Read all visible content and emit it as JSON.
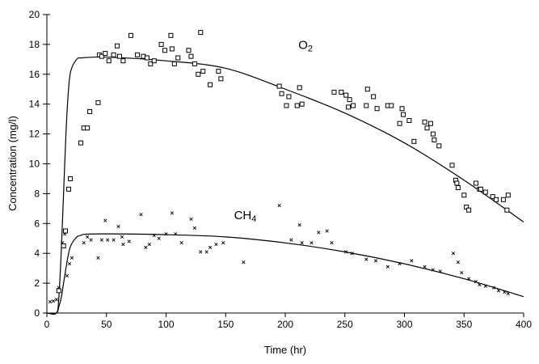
{
  "chart_data": {
    "type": "scatter",
    "title": "",
    "xlabel": "Time (hr)",
    "ylabel": "Concentration (mg/l)",
    "xlim": [
      0,
      400
    ],
    "ylim": [
      0,
      20
    ],
    "xticks": [
      0,
      50,
      100,
      150,
      200,
      250,
      300,
      350,
      400
    ],
    "yticks": [
      0,
      2,
      4,
      6,
      8,
      10,
      12,
      14,
      16,
      18,
      20
    ],
    "grid": false,
    "annotations": [
      {
        "text": "O",
        "sub": "2",
        "x": 211,
        "y": 17.7
      },
      {
        "text": "CH",
        "sub": "4",
        "x": 157,
        "y": 6.3
      }
    ],
    "series": [
      {
        "name": "O2",
        "marker": "square",
        "points": [
          [
            10,
            1.5
          ],
          [
            14,
            4.5
          ],
          [
            15.6,
            5.5
          ],
          [
            18.3,
            8.3
          ],
          [
            19.7,
            9.0
          ],
          [
            28.5,
            11.4
          ],
          [
            31,
            12.4
          ],
          [
            34,
            12.4
          ],
          [
            36,
            13.5
          ],
          [
            43,
            14.1
          ],
          [
            44,
            17.3
          ],
          [
            46,
            17.2
          ],
          [
            49,
            17.4
          ],
          [
            52,
            16.9
          ],
          [
            56,
            17.3
          ],
          [
            59,
            17.9
          ],
          [
            61,
            17.2
          ],
          [
            64,
            16.9
          ],
          [
            70.5,
            18.6
          ],
          [
            76,
            17.3
          ],
          [
            81,
            17.2
          ],
          [
            84,
            17.1
          ],
          [
            87,
            16.7
          ],
          [
            90,
            16.9
          ],
          [
            96,
            18.0
          ],
          [
            99,
            17.6
          ],
          [
            104,
            18.6
          ],
          [
            105,
            17.7
          ],
          [
            107,
            16.7
          ],
          [
            110,
            17.1
          ],
          [
            119,
            17.6
          ],
          [
            121,
            17.2
          ],
          [
            124,
            16.7
          ],
          [
            129,
            18.8
          ],
          [
            127,
            16.0
          ],
          [
            131,
            16.2
          ],
          [
            137,
            15.3
          ],
          [
            144,
            16.2
          ],
          [
            146,
            15.7
          ],
          [
            195,
            15.2
          ],
          [
            197,
            14.7
          ],
          [
            201,
            13.9
          ],
          [
            203,
            14.5
          ],
          [
            210,
            13.9
          ],
          [
            212,
            15.1
          ],
          [
            214,
            14.0
          ],
          [
            241,
            14.8
          ],
          [
            247,
            14.8
          ],
          [
            251,
            14.6
          ],
          [
            254,
            14.3
          ],
          [
            253,
            13.8
          ],
          [
            257,
            13.9
          ],
          [
            269,
            15.0
          ],
          [
            274,
            14.5
          ],
          [
            268,
            13.9
          ],
          [
            277,
            13.7
          ],
          [
            286,
            13.9
          ],
          [
            289,
            13.9
          ],
          [
            298,
            13.7
          ],
          [
            299,
            13.3
          ],
          [
            296,
            12.7
          ],
          [
            304,
            12.9
          ],
          [
            308,
            11.5
          ],
          [
            317,
            12.8
          ],
          [
            319,
            12.4
          ],
          [
            322,
            12.7
          ],
          [
            324,
            12.0
          ],
          [
            325,
            11.6
          ],
          [
            329,
            11.2
          ],
          [
            340,
            9.9
          ],
          [
            343,
            8.9
          ],
          [
            344,
            8.7
          ],
          [
            345,
            8.4
          ],
          [
            350,
            7.9
          ],
          [
            352,
            7.1
          ],
          [
            354,
            6.9
          ],
          [
            360,
            8.7
          ],
          [
            363,
            8.3
          ],
          [
            364,
            8.3
          ],
          [
            368,
            8.1
          ],
          [
            374,
            7.8
          ],
          [
            377,
            7.6
          ],
          [
            383,
            7.6
          ],
          [
            386,
            6.9
          ],
          [
            387,
            7.9
          ]
        ],
        "fit": [
          [
            0,
            0
          ],
          [
            8,
            0
          ],
          [
            10,
            1
          ],
          [
            12,
            4
          ],
          [
            14,
            8
          ],
          [
            16,
            12
          ],
          [
            18,
            14.8
          ],
          [
            20,
            16.2
          ],
          [
            25,
            17
          ],
          [
            30,
            17.1
          ],
          [
            50,
            17.15
          ],
          [
            100,
            16.9
          ],
          [
            150,
            16.4
          ],
          [
            200,
            15.0
          ],
          [
            250,
            13.4
          ],
          [
            300,
            11.4
          ],
          [
            350,
            8.9
          ],
          [
            400,
            6.1
          ]
        ]
      },
      {
        "name": "CH4",
        "marker": "x",
        "points": [
          [
            2.7,
            0.75
          ],
          [
            5.4,
            0.8
          ],
          [
            8,
            0.9
          ],
          [
            10,
            1.7
          ],
          [
            13,
            4.7
          ],
          [
            15,
            5.3
          ],
          [
            17,
            2.5
          ],
          [
            19,
            3.3
          ],
          [
            21,
            3.7
          ],
          [
            31,
            4.7
          ],
          [
            34,
            5.1
          ],
          [
            37,
            4.9
          ],
          [
            43,
            3.7
          ],
          [
            46,
            4.9
          ],
          [
            49,
            6.2
          ],
          [
            51,
            4.9
          ],
          [
            56,
            4.9
          ],
          [
            60,
            5.8
          ],
          [
            63,
            5.1
          ],
          [
            64,
            4.6
          ],
          [
            69,
            4.8
          ],
          [
            79,
            6.6
          ],
          [
            83,
            4.4
          ],
          [
            86,
            4.6
          ],
          [
            90,
            5.2
          ],
          [
            94,
            5.0
          ],
          [
            100,
            5.3
          ],
          [
            105,
            6.7
          ],
          [
            108,
            5.3
          ],
          [
            113,
            4.7
          ],
          [
            121,
            6.3
          ],
          [
            124,
            5.7
          ],
          [
            129,
            4.1
          ],
          [
            134,
            4.1
          ],
          [
            137,
            4.4
          ],
          [
            142,
            4.6
          ],
          [
            148,
            4.7
          ],
          [
            165,
            3.4
          ],
          [
            195,
            7.2
          ],
          [
            205,
            4.9
          ],
          [
            212,
            5.9
          ],
          [
            214,
            4.7
          ],
          [
            222,
            4.7
          ],
          [
            228,
            5.4
          ],
          [
            235,
            5.5
          ],
          [
            239,
            4.7
          ],
          [
            251,
            4.1
          ],
          [
            256,
            4.0
          ],
          [
            268,
            3.6
          ],
          [
            276,
            3.5
          ],
          [
            286,
            3.1
          ],
          [
            296,
            3.3
          ],
          [
            306,
            3.5
          ],
          [
            317,
            3.1
          ],
          [
            324,
            2.9
          ],
          [
            330,
            2.8
          ],
          [
            341,
            4.0
          ],
          [
            345,
            3.4
          ],
          [
            348,
            2.7
          ],
          [
            354,
            2.3
          ],
          [
            360,
            2.1
          ],
          [
            363,
            1.9
          ],
          [
            368,
            1.8
          ],
          [
            375,
            1.7
          ],
          [
            379,
            1.5
          ],
          [
            384,
            1.4
          ],
          [
            387,
            1.3
          ]
        ],
        "fit": [
          [
            0,
            0
          ],
          [
            8,
            0
          ],
          [
            10,
            0.4
          ],
          [
            12,
            1
          ],
          [
            14,
            2
          ],
          [
            16,
            3
          ],
          [
            18,
            3.9
          ],
          [
            20,
            4.5
          ],
          [
            24,
            5.0
          ],
          [
            28,
            5.2
          ],
          [
            40,
            5.3
          ],
          [
            100,
            5.25
          ],
          [
            150,
            5.1
          ],
          [
            200,
            4.7
          ],
          [
            250,
            4.1
          ],
          [
            300,
            3.3
          ],
          [
            350,
            2.3
          ],
          [
            400,
            1.1
          ]
        ]
      }
    ]
  }
}
